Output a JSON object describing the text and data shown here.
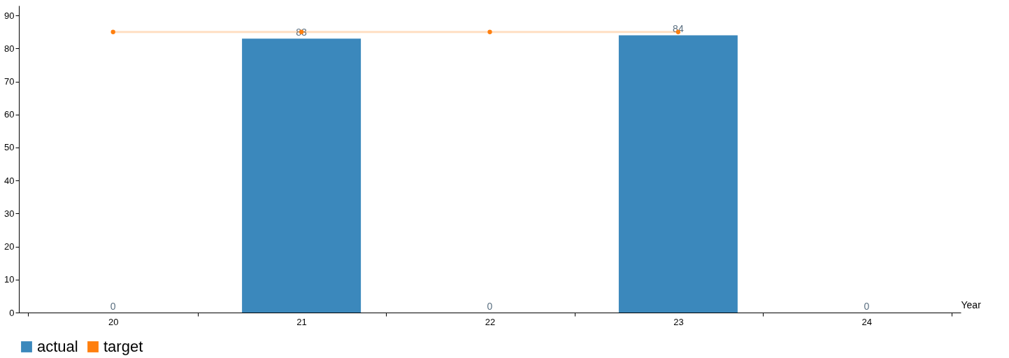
{
  "chart_data": {
    "type": "bar",
    "xlabel": "Year",
    "categories": [
      "20",
      "21",
      "22",
      "23",
      "24"
    ],
    "series": [
      {
        "name": "actual",
        "color": "#3b88bc",
        "values": [
          0,
          83,
          0,
          84,
          0
        ],
        "value_labels": [
          "0",
          "83",
          "0",
          "84",
          "0"
        ]
      },
      {
        "name": "target",
        "type": "line",
        "color": "#ff7f0e",
        "marker": "circle",
        "values": [
          85,
          85,
          85,
          85,
          null
        ]
      }
    ],
    "ylim": [
      0,
      93
    ],
    "yticks": [
      0,
      10,
      20,
      30,
      40,
      50,
      60,
      70,
      80,
      90
    ],
    "grid": false,
    "legend": "bottom"
  }
}
